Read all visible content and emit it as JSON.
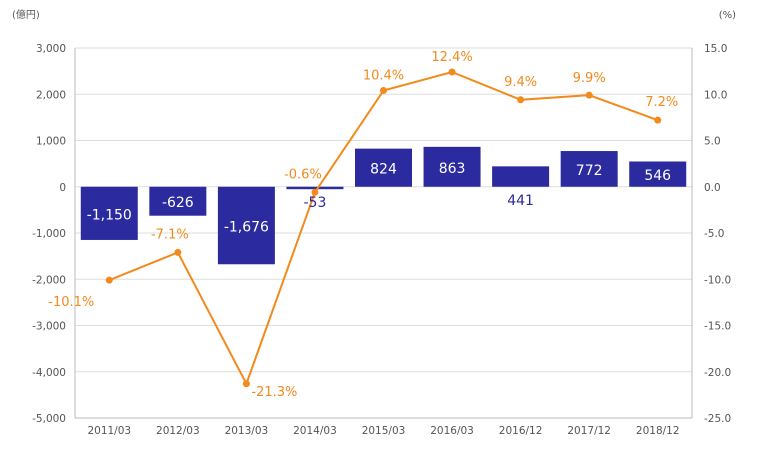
{
  "chart_data": {
    "type": "bar",
    "categories": [
      "2011/03",
      "2012/03",
      "2013/03",
      "2014/03",
      "2015/03",
      "2016/03",
      "2016/12",
      "2017/12",
      "2018/12"
    ],
    "series": [
      {
        "type": "bar",
        "axis": "left",
        "values": [
          -1150,
          -626,
          -1676,
          -53,
          824,
          863,
          441,
          772,
          546
        ],
        "labels": [
          "-1,150",
          "-626",
          "-1,676",
          "-53",
          "824",
          "863",
          "441",
          "772",
          "546"
        ],
        "color": "#2b2a9e"
      },
      {
        "type": "line",
        "axis": "right",
        "values": [
          -10.1,
          -7.1,
          -21.3,
          -0.6,
          10.4,
          12.4,
          9.4,
          9.9,
          7.2
        ],
        "labels": [
          "-10.1%",
          "-7.1%",
          "-21.3%",
          "-0.6%",
          "10.4%",
          "12.4%",
          "9.4%",
          "9.9%",
          "7.2%"
        ],
        "color": "#f28a1c"
      }
    ],
    "left_axis": {
      "unit_label": "(億円)",
      "ylim": [
        -5000,
        3000
      ],
      "ticks": [
        3000,
        2000,
        1000,
        0,
        -1000,
        -2000,
        -3000,
        -4000,
        -5000
      ],
      "tick_labels": [
        "3,000",
        "2,000",
        "1,000",
        "0",
        "-1,000",
        "-2,000",
        "-3,000",
        "-4,000",
        "-5,000"
      ]
    },
    "right_axis": {
      "unit_label": "(%)",
      "ylim": [
        -25,
        15
      ],
      "ticks": [
        15,
        10,
        5,
        0,
        -5,
        -10,
        -15,
        -20,
        -25
      ],
      "tick_labels": [
        "15.0",
        "10.0",
        "5.0",
        "0.0",
        "-5.0",
        "-10.0",
        "-15.0",
        "-20.0",
        "-25.0"
      ]
    },
    "grid": true,
    "legend": "none"
  }
}
